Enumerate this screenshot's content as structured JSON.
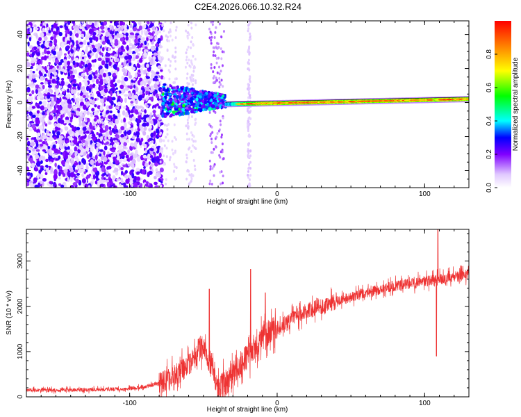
{
  "figure_title": "C2E4.2026.066.10.32.R24",
  "chart_data": [
    {
      "type": "heatmap",
      "xlabel": "Height of straight line (km)",
      "ylabel": "Frequency (Hz)",
      "xlim": [
        -170,
        130
      ],
      "ylim": [
        -50,
        48
      ],
      "xticks": [
        -100,
        0,
        100
      ],
      "yticks": [
        -40,
        -20,
        0,
        20,
        40
      ],
      "xtick_labels": [
        "-100",
        "0",
        "100"
      ],
      "ytick_labels": [
        "-40",
        "-20",
        "0",
        "20",
        "40"
      ],
      "colorbar": {
        "label": "Normalized spectral amplitude",
        "range": [
          0,
          1
        ],
        "ticks": [
          0.0,
          0.2,
          0.4,
          0.6,
          0.8
        ],
        "tick_labels": [
          "0.0",
          "0.2",
          "0.4",
          "0.6",
          "0.8"
        ]
      },
      "features": [
        {
          "description": "noise region",
          "x_range": [
            -170,
            -78
          ],
          "freq_range": [
            -50,
            48
          ],
          "amplitude": 0.25
        },
        {
          "description": "turbulent onset",
          "x_range": [
            -78,
            -35
          ],
          "freq_range": [
            -10,
            12
          ],
          "amplitude": 0.35
        },
        {
          "description": "spectral line",
          "x_range": [
            -35,
            130
          ],
          "center_freq": [
            -1,
            2
          ],
          "amplitude": 0.95
        }
      ]
    },
    {
      "type": "line",
      "xlabel": "Height of straight line (km)",
      "ylabel": "SNR (10 * v/v)",
      "xlim": [
        -170,
        130
      ],
      "ylim": [
        0,
        3700
      ],
      "xticks": [
        -100,
        0,
        100
      ],
      "yticks": [
        0,
        1000,
        2000,
        3000
      ],
      "xtick_labels": [
        "-100",
        "0",
        "100"
      ],
      "ytick_labels": [
        "0",
        "1000",
        "2000",
        "3000"
      ],
      "series": [
        {
          "name": "SNR",
          "color": "#ee3333",
          "x": [
            -170,
            -150,
            -120,
            -100,
            -90,
            -80,
            -70,
            -60,
            -55,
            -50,
            -45,
            -40,
            -35,
            -30,
            -25,
            -20,
            -15,
            -10,
            -5,
            0,
            10,
            20,
            30,
            40,
            60,
            80,
            100,
            110,
            120,
            130
          ],
          "y": [
            150,
            150,
            160,
            180,
            220,
            300,
            450,
            700,
            900,
            1100,
            700,
            200,
            300,
            500,
            700,
            900,
            1100,
            1300,
            1450,
            1500,
            1700,
            1900,
            2000,
            2100,
            2300,
            2450,
            2550,
            2600,
            2650,
            2700
          ],
          "spikes": [
            {
              "x": -46,
              "y": 2380
            },
            {
              "x": -18,
              "y": 2820
            },
            {
              "x": -8,
              "y": 2300
            },
            {
              "x": 109,
              "y": 3700
            },
            {
              "x": 108,
              "y": 900
            }
          ]
        }
      ]
    }
  ]
}
